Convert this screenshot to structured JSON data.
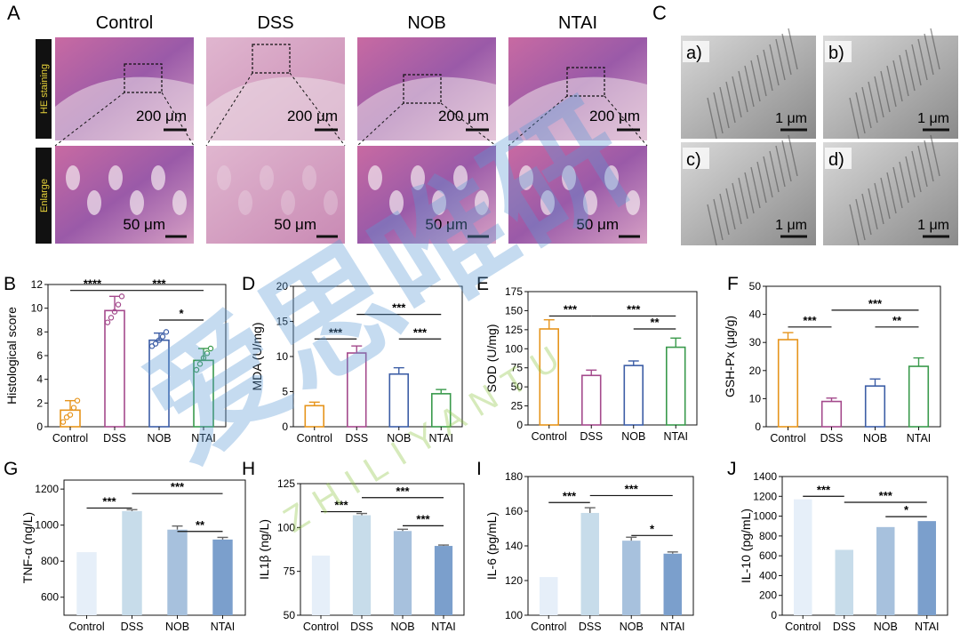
{
  "watermark": {
    "cn": "爱思唯研",
    "en": "ZHILIYANTU"
  },
  "panelA": {
    "letter": "A",
    "groups": [
      "Control",
      "DSS",
      "NOB",
      "NTAI"
    ],
    "row_labels": [
      "HE staining",
      "Enlarge"
    ],
    "scale_top": "200 μm",
    "scale_bottom": "50 μm"
  },
  "panelC": {
    "letter": "C",
    "subs": [
      "a)",
      "b)",
      "c)",
      "d)"
    ],
    "scale": "1 μm"
  },
  "chart_data": [
    {
      "id": "B",
      "type": "bar",
      "style": "outline_dots",
      "ylabel": "Histological score",
      "ylim": [
        0,
        12
      ],
      "yticks": [
        0,
        2,
        4,
        6,
        8,
        10,
        12
      ],
      "categories": [
        "Control",
        "DSS",
        "NOB",
        "NTAI"
      ],
      "values": [
        1.4,
        9.8,
        7.3,
        5.6
      ],
      "errors": [
        0.8,
        1.2,
        0.6,
        1.0
      ],
      "colors": [
        "#e6941c",
        "#a44a8c",
        "#3d5ea6",
        "#3a9a4c"
      ],
      "points": [
        [
          0.4,
          0.8,
          1.0,
          1.6,
          2.2
        ],
        [
          8.8,
          9.2,
          9.7,
          10.3,
          11.0
        ],
        [
          6.8,
          7.0,
          7.3,
          7.6,
          8.0
        ],
        [
          4.8,
          5.3,
          5.8,
          6.2,
          6.6
        ]
      ],
      "sig": [
        {
          "a": 0,
          "b": 1,
          "t": "****",
          "y": 11.5
        },
        {
          "a": 1,
          "b": 3,
          "t": "***",
          "y": 11.5
        },
        {
          "a": 2,
          "b": 3,
          "t": "*",
          "y": 9.0
        }
      ]
    },
    {
      "id": "D",
      "type": "bar",
      "style": "outline",
      "ylabel": "MDA (U/mg)",
      "ylim": [
        0,
        20
      ],
      "yticks": [
        0,
        5,
        10,
        15,
        20
      ],
      "categories": [
        "Control",
        "DSS",
        "NOB",
        "NTAI"
      ],
      "values": [
        3.0,
        10.5,
        7.5,
        4.7
      ],
      "errors": [
        0.5,
        1.0,
        0.9,
        0.6
      ],
      "colors": [
        "#e6941c",
        "#a44a8c",
        "#3d5ea6",
        "#3a9a4c"
      ],
      "sig": [
        {
          "a": 0,
          "b": 1,
          "t": "***",
          "y": 12.5
        },
        {
          "a": 1,
          "b": 3,
          "t": "***",
          "y": 16.0
        },
        {
          "a": 2,
          "b": 3,
          "t": "***",
          "y": 12.5
        }
      ]
    },
    {
      "id": "E",
      "type": "bar",
      "style": "outline",
      "ylabel": "SOD (U/mg)",
      "ylim": [
        0,
        175
      ],
      "yticks": [
        0,
        25,
        50,
        75,
        100,
        125,
        150,
        175
      ],
      "categories": [
        "Control",
        "DSS",
        "NOB",
        "NTAI"
      ],
      "values": [
        126,
        65,
        78,
        102
      ],
      "errors": [
        12,
        7,
        6,
        12
      ],
      "colors": [
        "#e6941c",
        "#a44a8c",
        "#3d5ea6",
        "#3a9a4c"
      ],
      "sig": [
        {
          "a": 0,
          "b": 1,
          "t": "***",
          "y": 143
        },
        {
          "a": 1,
          "b": 3,
          "t": "***",
          "y": 143
        },
        {
          "a": 2,
          "b": 3,
          "t": "**",
          "y": 126
        }
      ]
    },
    {
      "id": "F",
      "type": "bar",
      "style": "outline",
      "ylabel": "GSH-Px (μg/g)",
      "ylim": [
        0,
        50
      ],
      "yticks": [
        0,
        10,
        20,
        30,
        40,
        50
      ],
      "categories": [
        "Control",
        "DSS",
        "NOB",
        "NTAI"
      ],
      "values": [
        31,
        9,
        14.5,
        21.5
      ],
      "errors": [
        2.5,
        1.2,
        2.5,
        3.0
      ],
      "colors": [
        "#e6941c",
        "#a44a8c",
        "#3d5ea6",
        "#3a9a4c"
      ],
      "sig": [
        {
          "a": 0,
          "b": 1,
          "t": "***",
          "y": 35.5
        },
        {
          "a": 1,
          "b": 3,
          "t": "***",
          "y": 41.5
        },
        {
          "a": 2,
          "b": 3,
          "t": "**",
          "y": 35.5
        }
      ]
    },
    {
      "id": "G",
      "type": "bar",
      "style": "filled",
      "ylabel": "TNF-α (ng/L)",
      "ylim": [
        500,
        1250
      ],
      "yticks": [
        600,
        800,
        1000,
        1200
      ],
      "categories": [
        "Control",
        "DSS",
        "NOB",
        "NTAI"
      ],
      "values": [
        850,
        1078,
        975,
        920
      ],
      "errors": [
        0,
        8,
        20,
        12
      ],
      "colors": [
        "#e6eff9",
        "#c7dcea",
        "#a7c1dd",
        "#7b9fcc"
      ],
      "sig": [
        {
          "a": 0,
          "b": 1,
          "t": "***",
          "y": 1095
        },
        {
          "a": 1,
          "b": 3,
          "t": "***",
          "y": 1175
        },
        {
          "a": 2,
          "b": 3,
          "t": "**",
          "y": 965
        }
      ]
    },
    {
      "id": "H",
      "type": "bar",
      "style": "filled",
      "ylabel": "IL1β (ng/L)",
      "ylim": [
        50,
        125
      ],
      "yticks": [
        50,
        75,
        100,
        125
      ],
      "categories": [
        "Control",
        "DSS",
        "NOB",
        "NTAI"
      ],
      "values": [
        84,
        107,
        98,
        89.5
      ],
      "errors": [
        0,
        1,
        1,
        0.5
      ],
      "colors": [
        "#e6eff9",
        "#c7dcea",
        "#a7c1dd",
        "#7b9fcc"
      ],
      "sig": [
        {
          "a": 0,
          "b": 1,
          "t": "***",
          "y": 109
        },
        {
          "a": 1,
          "b": 3,
          "t": "***",
          "y": 117
        },
        {
          "a": 2,
          "b": 3,
          "t": "***",
          "y": 101
        }
      ]
    },
    {
      "id": "I",
      "type": "bar",
      "style": "filled",
      "ylabel": "IL-6 (pg/mL)",
      "ylim": [
        100,
        180
      ],
      "yticks": [
        100,
        120,
        140,
        160,
        180
      ],
      "categories": [
        "Control",
        "DSS",
        "NOB",
        "NTAI"
      ],
      "values": [
        122,
        159,
        143,
        135.5
      ],
      "errors": [
        0,
        3,
        2,
        1
      ],
      "colors": [
        "#e6eff9",
        "#c7dcea",
        "#a7c1dd",
        "#7b9fcc"
      ],
      "sig": [
        {
          "a": 0,
          "b": 1,
          "t": "***",
          "y": 165
        },
        {
          "a": 1,
          "b": 3,
          "t": "***",
          "y": 169
        },
        {
          "a": 2,
          "b": 3,
          "t": "*",
          "y": 146
        }
      ]
    },
    {
      "id": "J",
      "type": "bar",
      "style": "filled",
      "ylabel": "IL-10 (pg/mL)",
      "ylim": [
        0,
        1400
      ],
      "yticks": [
        0,
        200,
        400,
        600,
        800,
        1000,
        1200,
        1400
      ],
      "categories": [
        "Control",
        "DSS",
        "NOB",
        "NTAI"
      ],
      "values": [
        1170,
        660,
        890,
        950
      ],
      "errors": [
        0,
        0,
        0,
        0
      ],
      "colors": [
        "#e6eff9",
        "#c7dcea",
        "#a7c1dd",
        "#7b9fcc"
      ],
      "sig": [
        {
          "a": 0,
          "b": 1,
          "t": "***",
          "y": 1200
        },
        {
          "a": 1,
          "b": 3,
          "t": "***",
          "y": 1140
        },
        {
          "a": 2,
          "b": 3,
          "t": "*",
          "y": 995
        }
      ]
    }
  ]
}
